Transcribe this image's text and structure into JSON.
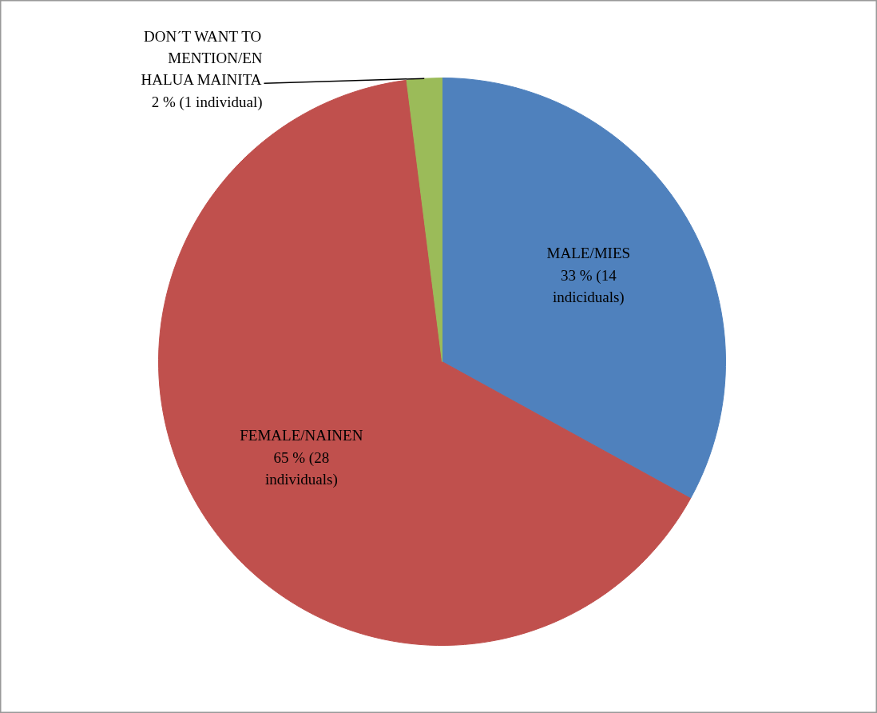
{
  "chart_data": {
    "type": "pie",
    "categories": [
      "MALE/MIES",
      "FEMALE/NAINEN",
      "DON´T WANT TO MENTION/EN HALUA MAINITA"
    ],
    "values": [
      33,
      65,
      2
    ],
    "value_labels": [
      "33 % (14 indiciduals)",
      "65 % (28 individuals)",
      "2 % (1 individual)"
    ],
    "colors": [
      "#4f81bd",
      "#c0504d",
      "#9bbb59"
    ]
  }
}
